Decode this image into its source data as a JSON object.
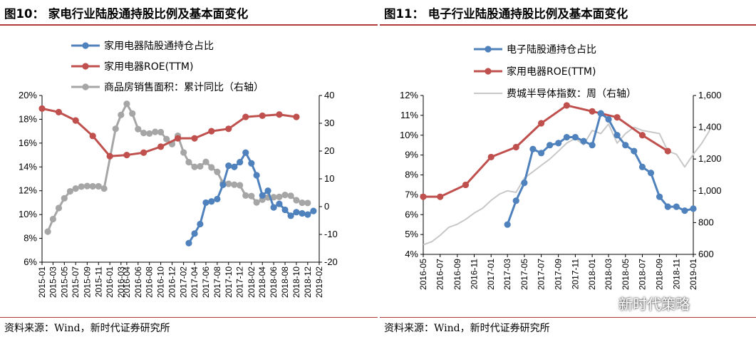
{
  "left": {
    "title": "图10： 家电行业陆股通持股比例及基本面变化",
    "source": "资料来源：Wind，新时代证券研究所",
    "chart_data": {
      "type": "line",
      "x": [
        "2015-01",
        "2015-03",
        "2015-05",
        "2015-07",
        "2015-09",
        "2015-11",
        "2016-01",
        "2016-03",
        "2016-04",
        "2016-06",
        "2016-08",
        "2016-10",
        "2016-12",
        "2017-02",
        "2017-04",
        "2017-06",
        "2017-08",
        "2017-10",
        "2017-12",
        "2018-02",
        "2018-04",
        "2018-06",
        "2018-08",
        "2018-10",
        "2018-12",
        "2019-02"
      ],
      "y_left_ticks": [
        "6%",
        "8%",
        "10%",
        "12%",
        "14%",
        "16%",
        "18%",
        "20%"
      ],
      "y_right_ticks": [
        "-20",
        "-10",
        "0",
        "10",
        "20",
        "30",
        "40"
      ],
      "ylim_left": [
        6,
        20
      ],
      "ylim_right": [
        -20,
        40
      ],
      "series": [
        {
          "name": "家用电器陆股通持仓占比",
          "axis": "left",
          "color": "#4f81bd",
          "marker": "circle",
          "points": [
            [
              "2017-03-01",
              7.6
            ],
            [
              "2017-04-01",
              8.4
            ],
            [
              "2017-05-01",
              9.2
            ],
            [
              "2017-06-01",
              11.0
            ],
            [
              "2017-07-01",
              11.1
            ],
            [
              "2017-08-01",
              11.3
            ],
            [
              "2017-09-01",
              12.5
            ],
            [
              "2017-10-01",
              14.1
            ],
            [
              "2017-11-01",
              14.0
            ],
            [
              "2017-12-01",
              14.4
            ],
            [
              "2018-01-01",
              15.2
            ],
            [
              "2018-02-01",
              14.3
            ],
            [
              "2018-03-01",
              13.3
            ],
            [
              "2018-04-01",
              11.6
            ],
            [
              "2018-05-01",
              12.0
            ],
            [
              "2018-06-01",
              10.6
            ],
            [
              "2018-07-01",
              10.9
            ],
            [
              "2018-08-01",
              10.4
            ],
            [
              "2018-09-01",
              9.9
            ],
            [
              "2018-10-01",
              10.2
            ],
            [
              "2018-11-01",
              10.1
            ],
            [
              "2018-12-01",
              10.0
            ],
            [
              "2019-01-01",
              10.3
            ]
          ]
        },
        {
          "name": "家用电器ROE(TTM)",
          "axis": "left",
          "color": "#c0504d",
          "marker": "circle",
          "points": [
            [
              "2015-01-01",
              18.9
            ],
            [
              "2015-04-01",
              18.6
            ],
            [
              "2015-07-01",
              17.9
            ],
            [
              "2015-10-01",
              16.6
            ],
            [
              "2016-01-01",
              14.9
            ],
            [
              "2016-04-01",
              15.0
            ],
            [
              "2016-07-01",
              15.2
            ],
            [
              "2016-10-01",
              15.7
            ],
            [
              "2017-01-01",
              16.4
            ],
            [
              "2017-04-01",
              16.4
            ],
            [
              "2017-07-01",
              17.0
            ],
            [
              "2017-10-01",
              17.2
            ],
            [
              "2018-01-01",
              18.2
            ],
            [
              "2018-04-01",
              18.3
            ],
            [
              "2018-07-01",
              18.4
            ],
            [
              "2018-10-01",
              18.2
            ]
          ]
        },
        {
          "name": "商品房销售面积：累计同比（右轴）",
          "axis": "right",
          "color": "#a6a6a6",
          "marker": "circle",
          "points": [
            [
              "2015-02-01",
              -9.0
            ],
            [
              "2015-03-01",
              -4.5
            ],
            [
              "2015-04-01",
              -0.5
            ],
            [
              "2015-05-01",
              3.0
            ],
            [
              "2015-06-01",
              5.5
            ],
            [
              "2015-07-01",
              6.5
            ],
            [
              "2015-08-01",
              7.2
            ],
            [
              "2015-09-01",
              7.4
            ],
            [
              "2015-10-01",
              7.3
            ],
            [
              "2015-11-01",
              7.3
            ],
            [
              "2015-12-01",
              6.5
            ],
            [
              "2016-02-01",
              28.0
            ],
            [
              "2016-03-01",
              33.0
            ],
            [
              "2016-04-01",
              37.0
            ],
            [
              "2016-05-01",
              33.5
            ],
            [
              "2016-06-01",
              27.9
            ],
            [
              "2016-07-01",
              26.5
            ],
            [
              "2016-08-01",
              26.3
            ],
            [
              "2016-09-01",
              26.9
            ],
            [
              "2016-10-01",
              26.8
            ],
            [
              "2016-11-01",
              24.3
            ],
            [
              "2016-12-01",
              22.5
            ],
            [
              "2017-01-01",
              25.5
            ],
            [
              "2017-02-01",
              19.5
            ],
            [
              "2017-03-01",
              16.0
            ],
            [
              "2017-04-01",
              14.3
            ],
            [
              "2017-05-01",
              14.5
            ],
            [
              "2017-06-01",
              16.1
            ],
            [
              "2017-07-01",
              14.1
            ],
            [
              "2017-08-01",
              12.5
            ],
            [
              "2017-09-01",
              8.5
            ],
            [
              "2017-10-01",
              8.2
            ],
            [
              "2017-11-01",
              7.9
            ],
            [
              "2017-12-01",
              7.7
            ],
            [
              "2018-01-01",
              4.0
            ],
            [
              "2018-02-01",
              3.8
            ],
            [
              "2018-03-01",
              1.5
            ],
            [
              "2018-04-01",
              2.5
            ],
            [
              "2018-05-01",
              3.3
            ],
            [
              "2018-06-01",
              3.4
            ],
            [
              "2018-07-01",
              3.5
            ],
            [
              "2018-08-01",
              4.2
            ],
            [
              "2018-09-01",
              3.9
            ],
            [
              "2018-10-01",
              2.3
            ],
            [
              "2018-11-01",
              1.4
            ],
            [
              "2018-12-01",
              1.3
            ]
          ]
        }
      ]
    }
  },
  "right": {
    "title": "图11： 电子行业陆股通持股比例及基本面变化",
    "source": "资料来源：Wind，新时代证券研究所",
    "chart_data": {
      "type": "line",
      "x": [
        "2016-05",
        "2016-07",
        "2016-09",
        "2016-11",
        "2017-01",
        "2017-03",
        "2017-05",
        "2017-07",
        "2017-09",
        "2017-11",
        "2018-01",
        "2018-03",
        "2018-05",
        "2018-07",
        "2018-09",
        "2018-11",
        "2019-01"
      ],
      "y_left_ticks": [
        "4%",
        "5%",
        "6%",
        "7%",
        "8%",
        "9%",
        "10%",
        "11%",
        "12%"
      ],
      "y_right_ticks": [
        "600",
        "800",
        "1,000",
        "1,200",
        "1,400",
        "1,600"
      ],
      "ylim_left": [
        4,
        12
      ],
      "ylim_right": [
        600,
        1600
      ],
      "series": [
        {
          "name": "电子陆股通持仓占比",
          "axis": "left",
          "color": "#4f81bd",
          "marker": "circle",
          "points": [
            [
              "2017-03-01",
              5.5
            ],
            [
              "2017-04-01",
              6.7
            ],
            [
              "2017-05-01",
              7.6
            ],
            [
              "2017-06-01",
              9.3
            ],
            [
              "2017-07-01",
              9.1
            ],
            [
              "2017-08-01",
              9.5
            ],
            [
              "2017-09-01",
              9.6
            ],
            [
              "2017-10-01",
              9.9
            ],
            [
              "2017-11-01",
              9.9
            ],
            [
              "2017-12-01",
              9.7
            ],
            [
              "2018-01-01",
              9.5
            ],
            [
              "2018-02-01",
              11.1
            ],
            [
              "2018-03-01",
              10.8
            ],
            [
              "2018-04-01",
              10.0
            ],
            [
              "2018-05-01",
              9.5
            ],
            [
              "2018-06-01",
              9.2
            ],
            [
              "2018-07-01",
              8.4
            ],
            [
              "2018-08-01",
              8.1
            ],
            [
              "2018-09-01",
              6.9
            ],
            [
              "2018-10-01",
              6.4
            ],
            [
              "2018-11-01",
              6.4
            ],
            [
              "2018-12-01",
              6.2
            ],
            [
              "2019-01-01",
              6.3
            ]
          ]
        },
        {
          "name": "家用电器ROE(TTM)",
          "axis": "left",
          "color": "#c0504d",
          "marker": "circle",
          "points": [
            [
              "2016-05-01",
              6.9
            ],
            [
              "2016-07-01",
              6.9
            ],
            [
              "2016-10-01",
              7.5
            ],
            [
              "2017-01-01",
              8.9
            ],
            [
              "2017-04-01",
              9.4
            ],
            [
              "2017-07-01",
              10.6
            ],
            [
              "2017-10-01",
              11.5
            ],
            [
              "2018-01-01",
              11.2
            ],
            [
              "2018-04-01",
              10.9
            ],
            [
              "2018-07-01",
              10.0
            ],
            [
              "2018-10-01",
              9.2
            ]
          ]
        },
        {
          "name": "费城半导体指数：周（右轴）",
          "axis": "right",
          "color": "#c8c8c8",
          "marker": "none",
          "points": [
            [
              "2016-05-01",
              660
            ],
            [
              "2016-06-01",
              680
            ],
            [
              "2016-07-01",
              720
            ],
            [
              "2016-08-01",
              770
            ],
            [
              "2016-09-01",
              790
            ],
            [
              "2016-10-01",
              820
            ],
            [
              "2016-11-01",
              860
            ],
            [
              "2016-12-01",
              890
            ],
            [
              "2017-01-01",
              940
            ],
            [
              "2017-02-01",
              980
            ],
            [
              "2017-03-01",
              1000
            ],
            [
              "2017-04-01",
              990
            ],
            [
              "2017-05-01",
              1080
            ],
            [
              "2017-06-01",
              1120
            ],
            [
              "2017-07-01",
              1160
            ],
            [
              "2017-08-01",
              1200
            ],
            [
              "2017-09-01",
              1250
            ],
            [
              "2017-10-01",
              1300
            ],
            [
              "2017-11-01",
              1330
            ],
            [
              "2017-12-01",
              1290
            ],
            [
              "2018-01-01",
              1380
            ],
            [
              "2018-02-01",
              1360
            ],
            [
              "2018-03-01",
              1420
            ],
            [
              "2018-04-01",
              1300
            ],
            [
              "2018-05-01",
              1360
            ],
            [
              "2018-06-01",
              1400
            ],
            [
              "2018-07-01",
              1380
            ],
            [
              "2018-08-01",
              1370
            ],
            [
              "2018-09-01",
              1360
            ],
            [
              "2018-10-01",
              1250
            ],
            [
              "2018-11-01",
              1230
            ],
            [
              "2018-12-01",
              1150
            ],
            [
              "2019-01-01",
              1230
            ],
            [
              "2019-02-01",
              1300
            ],
            [
              "2019-03-01",
              1380
            ]
          ]
        }
      ]
    }
  },
  "watermark": "新时代策略",
  "icons": {
    "watermark_icon": "chat-bubbles-icon"
  }
}
